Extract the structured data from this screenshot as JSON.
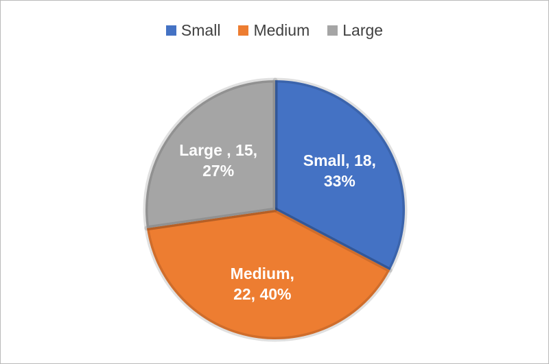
{
  "chart_data": {
    "type": "pie",
    "categories": [
      "Small",
      "Medium",
      "Large"
    ],
    "values": [
      18,
      22,
      15
    ],
    "value_labels": [
      "Small, 18, 33%",
      "Medium, 22, 40%",
      "Large , 15, 27%"
    ],
    "colors": [
      "#4472c4",
      "#ed7d31",
      "#a5a5a5"
    ],
    "legend": "top"
  }
}
